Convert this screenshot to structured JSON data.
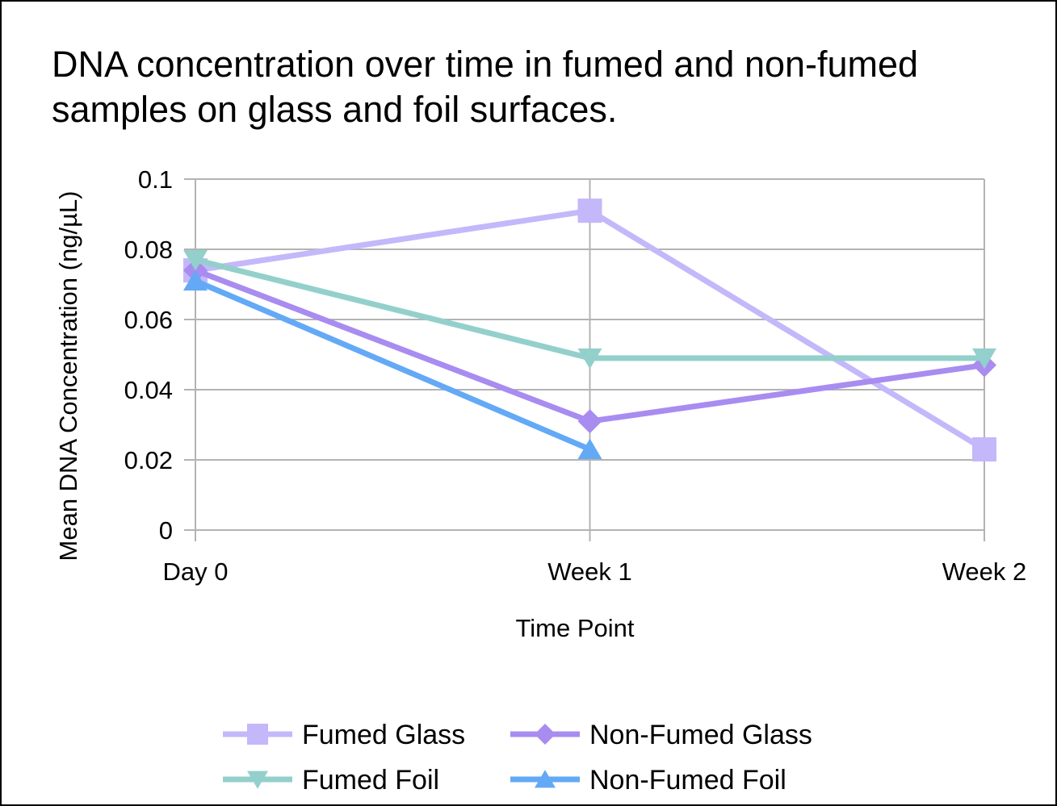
{
  "title_line1": "DNA concentration over time in fumed and non-fumed",
  "title_line2": "samples on glass and foil surfaces.",
  "chart_data": {
    "type": "line",
    "title": "DNA concentration over time in fumed and non-fumed samples on glass and foil surfaces.",
    "xlabel": "Time Point",
    "ylabel": "Mean DNA Concentration (ng/µL)",
    "categories": [
      "Day 0",
      "Week 1",
      "Week 2"
    ],
    "ylim": [
      0,
      0.1
    ],
    "yticks": [
      0,
      0.02,
      0.04,
      0.06,
      0.08,
      0.1
    ],
    "ytick_labels": [
      "0",
      "0.02",
      "0.04",
      "0.06",
      "0.08",
      "0.1"
    ],
    "grid": true,
    "legend_position": "bottom",
    "series": [
      {
        "name": "Fumed Glass",
        "marker": "square",
        "color": "#c4b8fa",
        "values": [
          0.074,
          0.091,
          0.023
        ]
      },
      {
        "name": "Non-Fumed Glass",
        "marker": "diamond",
        "color": "#a88cf0",
        "values": [
          0.074,
          0.031,
          0.047
        ]
      },
      {
        "name": "Fumed Foil",
        "marker": "triangle-down",
        "color": "#93d0cb",
        "values": [
          0.077,
          0.049,
          0.049
        ]
      },
      {
        "name": "Non-Fumed Foil",
        "marker": "triangle-up",
        "color": "#63a9f6",
        "values": [
          0.071,
          0.023,
          null
        ]
      }
    ]
  }
}
